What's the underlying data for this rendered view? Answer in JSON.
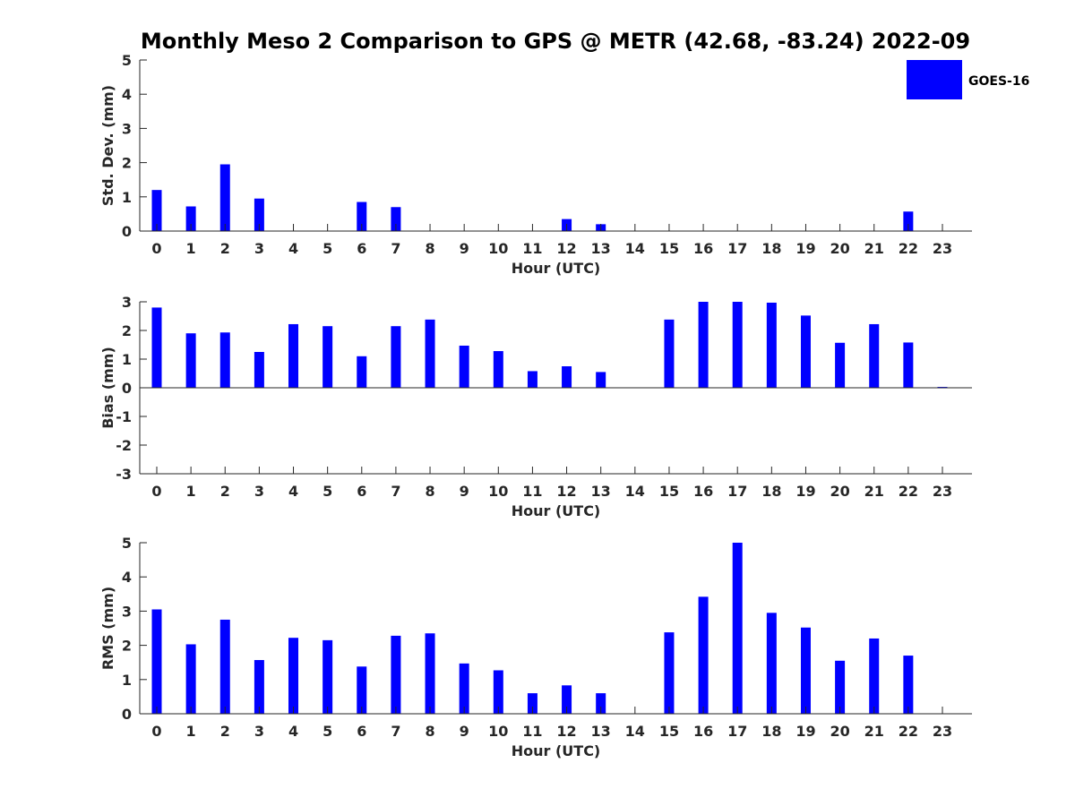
{
  "chart_data": {
    "title": "Monthly Meso 2 Comparison to GPS @ METR (42.68, -83.24) 2022-09",
    "legend": {
      "entries": [
        "GOES-16"
      ],
      "placement": "top-right (outside)"
    },
    "bar_color": "#0000ff",
    "charts": [
      {
        "type": "bar",
        "xlabel": "Hour (UTC)",
        "ylabel": "Std. Dev. (mm)",
        "ylim": [
          0,
          5
        ],
        "yticks": [
          0,
          1,
          2,
          3,
          4,
          5
        ],
        "categories": [
          0,
          1,
          2,
          3,
          4,
          5,
          6,
          7,
          8,
          9,
          10,
          11,
          12,
          13,
          14,
          15,
          16,
          17,
          18,
          19,
          20,
          21,
          22,
          23
        ],
        "series": [
          {
            "name": "GOES-16",
            "values": [
              1.2,
              0.72,
              1.95,
              0.95,
              0,
              0,
              0.85,
              0.7,
              0,
              0,
              0,
              0,
              0.35,
              0.2,
              0,
              0,
              0,
              0,
              0,
              0,
              0,
              0,
              0.57,
              0
            ]
          }
        ]
      },
      {
        "type": "bar",
        "xlabel": "Hour (UTC)",
        "ylabel": "Bias (mm)",
        "ylim": [
          -3,
          3
        ],
        "yticks": [
          -3,
          -2,
          -1,
          0,
          1,
          2,
          3
        ],
        "categories": [
          0,
          1,
          2,
          3,
          4,
          5,
          6,
          7,
          8,
          9,
          10,
          11,
          12,
          13,
          14,
          15,
          16,
          17,
          18,
          19,
          20,
          21,
          22,
          23
        ],
        "series": [
          {
            "name": "GOES-16",
            "values": [
              2.8,
              1.9,
              1.93,
              1.25,
              2.22,
              2.15,
              1.1,
              2.15,
              2.38,
              1.47,
              1.28,
              0.58,
              0.75,
              0.55,
              0,
              2.38,
              3.0,
              3.0,
              2.97,
              2.52,
              1.57,
              2.22,
              1.58,
              0.03
            ]
          }
        ]
      },
      {
        "type": "bar",
        "xlabel": "Hour (UTC)",
        "ylabel": "RMS (mm)",
        "ylim": [
          0,
          5
        ],
        "yticks": [
          0,
          1,
          2,
          3,
          4,
          5
        ],
        "categories": [
          0,
          1,
          2,
          3,
          4,
          5,
          6,
          7,
          8,
          9,
          10,
          11,
          12,
          13,
          14,
          15,
          16,
          17,
          18,
          19,
          20,
          21,
          22,
          23
        ],
        "series": [
          {
            "name": "GOES-16",
            "values": [
              3.05,
              2.03,
              2.75,
              1.57,
              2.22,
              2.15,
              1.38,
              2.28,
              2.35,
              1.47,
              1.27,
              0.6,
              0.83,
              0.6,
              0,
              2.38,
              3.42,
              5.0,
              2.95,
              2.52,
              1.55,
              2.2,
              1.7,
              0
            ]
          }
        ]
      }
    ]
  }
}
